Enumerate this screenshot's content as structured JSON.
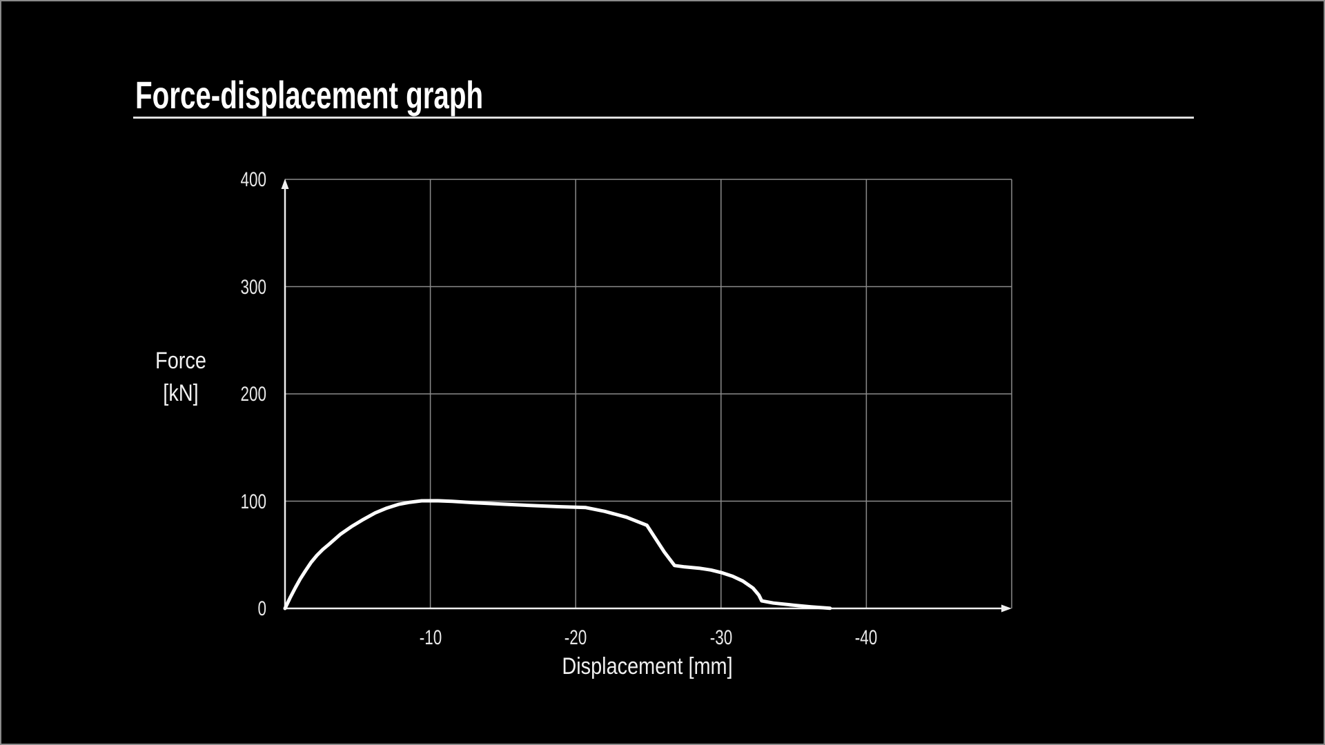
{
  "title": "Force-displacement graph",
  "colors": {
    "background": "#000000",
    "frame_border": "#8a8a8a",
    "title": "#ffffff",
    "title_rule": "#e0e0e0",
    "grid": "#8c8c8c",
    "axis": "#f0f0f0",
    "text": "#e8e8e8",
    "curve": "#ffffff"
  },
  "chart_data": {
    "type": "line",
    "title": "Force-displacement graph",
    "xlabel": "Displacement [mm]",
    "ylabel": "Force [kN]",
    "ylabel_lines": [
      "Force",
      "[kN]"
    ],
    "xlim": [
      0,
      -50
    ],
    "ylim": [
      0,
      400
    ],
    "grid": true,
    "legend": "none",
    "x_ticks": [
      {
        "value": -10,
        "label": "-10"
      },
      {
        "value": -20,
        "label": "-20"
      },
      {
        "value": -30,
        "label": "-30"
      },
      {
        "value": -40,
        "label": "-40"
      }
    ],
    "y_ticks": [
      {
        "value": 0,
        "label": "0"
      },
      {
        "value": 100,
        "label": "100"
      },
      {
        "value": 200,
        "label": "200"
      },
      {
        "value": 300,
        "label": "300"
      },
      {
        "value": 400,
        "label": "400"
      }
    ],
    "x_gridline_values": [
      -10,
      -20,
      -30,
      -40,
      -50
    ],
    "y_gridline_values": [
      100,
      200,
      300,
      400
    ],
    "series": [
      {
        "name": "Force-displacement curve",
        "color": "#ffffff",
        "points": [
          [
            0,
            0
          ],
          [
            -0.35,
            10
          ],
          [
            -0.7,
            19
          ],
          [
            -1.05,
            27.5
          ],
          [
            -1.4,
            35
          ],
          [
            -1.8,
            43
          ],
          [
            -2.2,
            49.5
          ],
          [
            -2.6,
            55
          ],
          [
            -3,
            59.5
          ],
          [
            -3.8,
            69
          ],
          [
            -4.6,
            76.5
          ],
          [
            -5.4,
            83
          ],
          [
            -6.2,
            89
          ],
          [
            -7,
            93.5
          ],
          [
            -7.8,
            97
          ],
          [
            -8.6,
            99
          ],
          [
            -9.4,
            100.3
          ],
          [
            -10.5,
            100.4
          ],
          [
            -11.5,
            99.8
          ],
          [
            -13,
            98.6
          ],
          [
            -15,
            97.2
          ],
          [
            -17,
            95.9
          ],
          [
            -19,
            94.8
          ],
          [
            -20.7,
            94
          ],
          [
            -22,
            90.5
          ],
          [
            -23.5,
            85
          ],
          [
            -24.9,
            77.5
          ],
          [
            -25.5,
            65
          ],
          [
            -26.1,
            52.5
          ],
          [
            -26.8,
            40
          ],
          [
            -27.5,
            38.7
          ],
          [
            -28.5,
            37.5
          ],
          [
            -29.3,
            35.8
          ],
          [
            -30,
            33.5
          ],
          [
            -30.8,
            30
          ],
          [
            -31.5,
            25.5
          ],
          [
            -32.2,
            19
          ],
          [
            -32.6,
            12.5
          ],
          [
            -32.8,
            7
          ],
          [
            -33.6,
            5
          ],
          [
            -35,
            3
          ],
          [
            -36.2,
            1.5
          ],
          [
            -37.5,
            0.2
          ]
        ]
      }
    ]
  }
}
